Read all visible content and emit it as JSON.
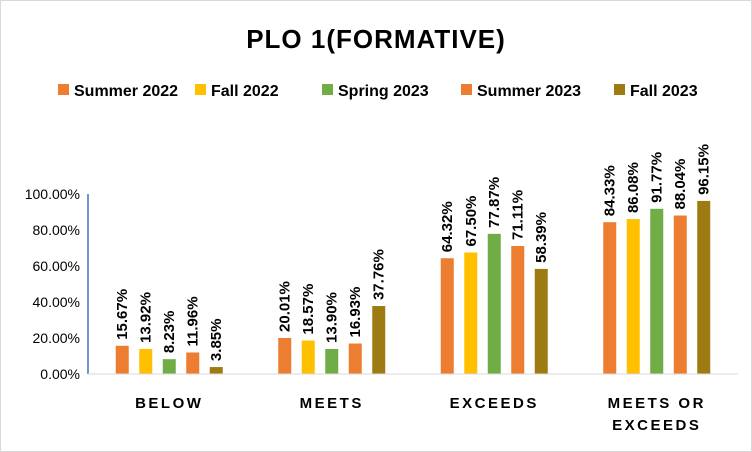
{
  "chart_data": {
    "type": "bar",
    "title": "PLO 1(FORMATIVE)",
    "categories": [
      [
        "BELOW"
      ],
      [
        "MEETS"
      ],
      [
        "EXCEEDS"
      ],
      [
        "MEETS OR",
        "EXCEEDS"
      ]
    ],
    "series": [
      {
        "name": "Summer 2022",
        "color": "#ED7D31",
        "values": [
          15.67,
          20.01,
          64.32,
          84.33
        ]
      },
      {
        "name": "Fall 2022",
        "color": "#FFC000",
        "values": [
          13.92,
          18.57,
          67.5,
          86.08
        ]
      },
      {
        "name": "Spring 2023",
        "color": "#70AD47",
        "values": [
          8.23,
          13.9,
          77.87,
          91.77
        ]
      },
      {
        "name": "Summer 2023",
        "color": "#ED7D31",
        "values": [
          11.96,
          16.93,
          71.11,
          88.04
        ]
      },
      {
        "name": "Fall 2023",
        "color": "#9E7A12",
        "values": [
          3.85,
          37.76,
          58.39,
          96.15
        ]
      }
    ],
    "ylim": [
      0,
      100
    ],
    "yticks": [
      "0.00%",
      "20.00%",
      "40.00%",
      "60.00%",
      "80.00%",
      "100.00%"
    ],
    "ytick_values": [
      0,
      20,
      40,
      60,
      80,
      100
    ],
    "data_labels": [
      [
        "15.67%",
        "20.01%",
        "64.32%",
        "84.33%"
      ],
      [
        "13.92%",
        "18.57%",
        "67.50%",
        "86.08%"
      ],
      [
        "8.23%",
        "13.90%",
        "77.87%",
        "91.77%"
      ],
      [
        "11.96%",
        "16.93%",
        "71.11%",
        "88.04%"
      ],
      [
        "3.85%",
        "37.76%",
        "58.39%",
        "96.15%"
      ]
    ],
    "grid": false,
    "legend_position": "top"
  }
}
